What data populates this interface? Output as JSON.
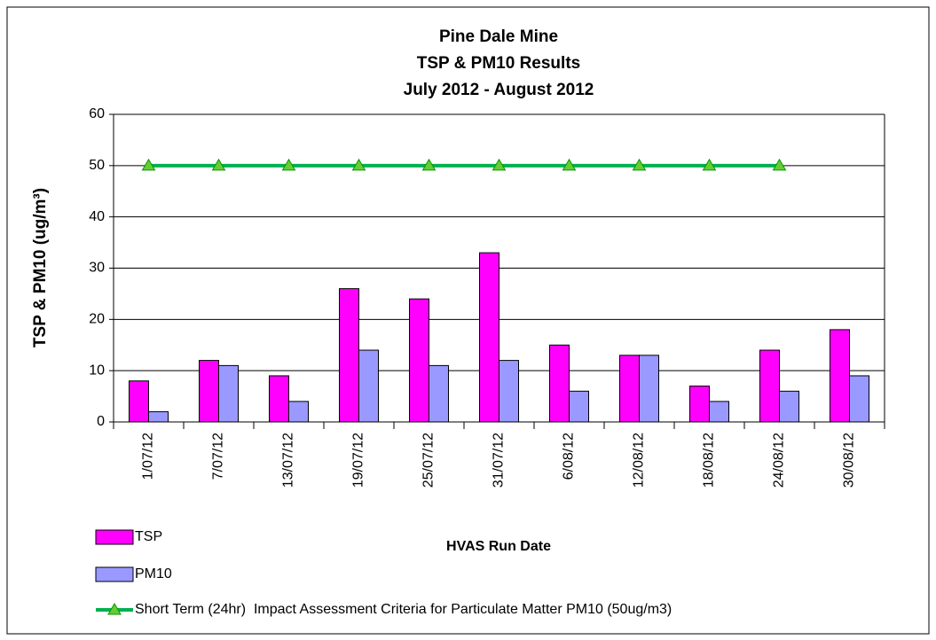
{
  "chart_data": {
    "type": "bar",
    "title": [
      "Pine Dale Mine",
      "TSP & PM10 Results",
      "July 2012 - August 2012"
    ],
    "x_label": "HVAS Run Date",
    "y_label": "TSP & PM10 (ug/m³)",
    "categories": [
      "1/07/12",
      "7/07/12",
      "13/07/12",
      "19/07/12",
      "25/07/12",
      "31/07/12",
      "6/08/12",
      "12/08/12",
      "18/08/12",
      "24/08/12",
      "30/08/12"
    ],
    "series": [
      {
        "name": "TSP",
        "type": "bar",
        "color": "#ff00ff",
        "values": [
          8,
          12,
          9,
          26,
          24,
          33,
          15,
          13,
          7,
          14,
          18
        ]
      },
      {
        "name": "PM10",
        "type": "bar",
        "color": "#9999ff",
        "values": [
          2,
          11,
          4,
          14,
          11,
          12,
          6,
          13,
          4,
          6,
          9
        ]
      },
      {
        "name": "Short Term (24hr)  Impact Assessment Criteria for Particulate Matter PM10 (50ug/m3)",
        "type": "line",
        "color": "#00b050",
        "values": [
          50,
          50,
          50,
          50,
          50,
          50,
          50,
          50,
          50,
          50,
          null
        ]
      }
    ],
    "ylim": [
      0,
      60
    ],
    "yticks": [
      0,
      10,
      20,
      30,
      40,
      50,
      60
    ],
    "grid": true
  }
}
